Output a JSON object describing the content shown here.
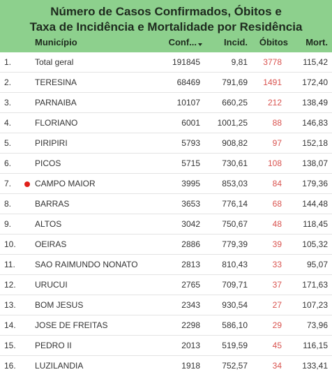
{
  "header": {
    "title": [
      "Número de Casos Confirmados, Óbitos e",
      "Taxa de Incidência e Mortalidade por Residência"
    ]
  },
  "table": {
    "columns": [
      "",
      "Município",
      "Conf...",
      "Incid.",
      "Óbitos",
      "Mort."
    ],
    "rows": [
      [
        "1.",
        "Total geral",
        "191845",
        "9,81",
        "3778",
        "115,42"
      ],
      [
        "2.",
        "TERESINA",
        "68469",
        "791,69",
        "1491",
        "172,40"
      ],
      [
        "3.",
        "PARNAIBA",
        "10107",
        "660,25",
        "212",
        "138,49"
      ],
      [
        "4.",
        "FLORIANO",
        "6001",
        "1001,25",
        "88",
        "146,83"
      ],
      [
        "5.",
        "PIRIPIRI",
        "5793",
        "908,82",
        "97",
        "152,18"
      ],
      [
        "6.",
        "PICOS",
        "5715",
        "730,61",
        "108",
        "138,07"
      ],
      [
        "7.",
        "CAMPO MAIOR",
        "3995",
        "853,03",
        "84",
        "179,36"
      ],
      [
        "8.",
        "BARRAS",
        "3653",
        "776,14",
        "68",
        "144,48"
      ],
      [
        "9.",
        "ALTOS",
        "3042",
        "750,67",
        "48",
        "118,45"
      ],
      [
        "10.",
        "OEIRAS",
        "2886",
        "779,39",
        "39",
        "105,32"
      ],
      [
        "11.",
        "SAO RAIMUNDO NONATO",
        "2813",
        "810,43",
        "33",
        "95,07"
      ],
      [
        "12.",
        "URUCUI",
        "2765",
        "709,71",
        "37",
        "171,63"
      ],
      [
        "13.",
        "BOM JESUS",
        "2343",
        "930,54",
        "27",
        "107,23"
      ],
      [
        "14.",
        "JOSE DE FREITAS",
        "2298",
        "586,10",
        "29",
        "73,96"
      ],
      [
        "15.",
        "PEDRO II",
        "2013",
        "519,59",
        "45",
        "116,15"
      ],
      [
        "16.",
        "LUZILANDIA",
        "1918",
        "752,57",
        "34",
        "133,41"
      ]
    ]
  }
}
